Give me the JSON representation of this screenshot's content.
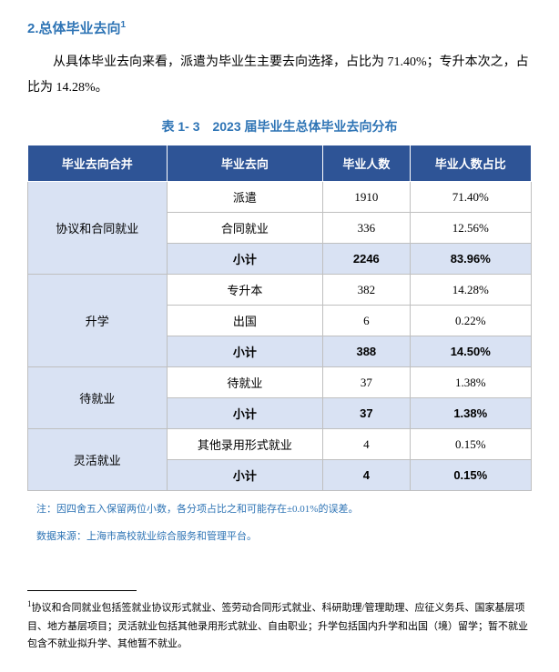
{
  "section": {
    "title": "2.总体毕业去向",
    "sup": "1",
    "body": "从具体毕业去向来看，派遣为毕业生主要去向选择，占比为 71.40%；专升本次之，占比为 14.28%。"
  },
  "table": {
    "title": "表 1- 3　2023 届毕业生总体毕业去向分布",
    "headers": [
      "毕业去向合并",
      "毕业去向",
      "毕业人数",
      "毕业人数占比"
    ],
    "groups": [
      {
        "category": "协议和合同就业",
        "rows": [
          {
            "dest": "派遣",
            "count": "1910",
            "pct": "71.40%"
          },
          {
            "dest": "合同就业",
            "count": "336",
            "pct": "12.56%"
          }
        ],
        "subtotal": {
          "dest": "小计",
          "count": "2246",
          "pct": "83.96%"
        }
      },
      {
        "category": "升学",
        "rows": [
          {
            "dest": "专升本",
            "count": "382",
            "pct": "14.28%"
          },
          {
            "dest": "出国",
            "count": "6",
            "pct": "0.22%"
          }
        ],
        "subtotal": {
          "dest": "小计",
          "count": "388",
          "pct": "14.50%"
        }
      },
      {
        "category": "待就业",
        "rows": [
          {
            "dest": "待就业",
            "count": "37",
            "pct": "1.38%"
          }
        ],
        "subtotal": {
          "dest": "小计",
          "count": "37",
          "pct": "1.38%"
        }
      },
      {
        "category": "灵活就业",
        "rows": [
          {
            "dest": "其他录用形式就业",
            "count": "4",
            "pct": "0.15%"
          }
        ],
        "subtotal": {
          "dest": "小计",
          "count": "4",
          "pct": "0.15%"
        }
      }
    ]
  },
  "notes": {
    "n1": "注：因四舍五入保留两位小数，各分项占比之和可能存在±0.01%的误差。",
    "n2": "数据来源：上海市高校就业综合服务和管理平台。"
  },
  "footnote": {
    "sup": "1",
    "text": "协议和合同就业包括签就业协议形式就业、签劳动合同形式就业、科研助理/管理助理、应征义务兵、国家基层项目、地方基层项目；灵活就业包括其他录用形式就业、自由职业；升学包括国内升学和出国（境）留学；暂不就业包含不就业拟升学、其他暂不就业。"
  }
}
